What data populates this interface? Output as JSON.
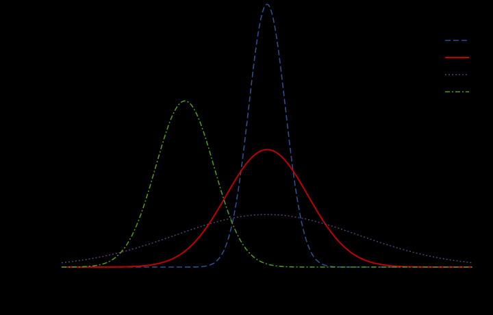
{
  "chart_data": {
    "type": "line",
    "title": "",
    "xlabel": "",
    "ylabel": "",
    "xlim": [
      -5,
      5
    ],
    "ylim": [
      0,
      0.8
    ],
    "grid": false,
    "legend": {
      "placement": "top-right"
    },
    "series": [
      {
        "mean": 0,
        "std": 0.447,
        "color": "#2f4f8f",
        "dash": "dashed"
      },
      {
        "mean": 0,
        "std": 1.0,
        "color": "#c00000",
        "dash": "solid"
      },
      {
        "mean": 0,
        "std": 2.236,
        "color": "#5b3a6f",
        "dash": "dotted"
      },
      {
        "mean": -2,
        "std": 0.707,
        "color": "#4c9a1a",
        "dash": "dashdot"
      }
    ]
  }
}
